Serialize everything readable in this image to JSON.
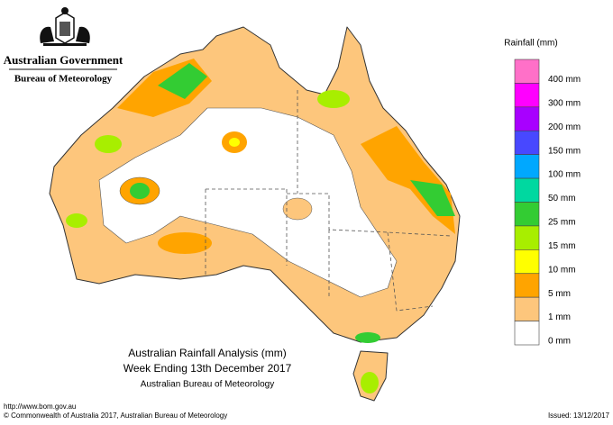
{
  "header": {
    "agency": "Australian Government",
    "bureau": "Bureau of Meteorology"
  },
  "legend": {
    "title": "Rainfall (mm)",
    "boxes": [
      "#ff70c8",
      "#ff00ff",
      "#a800ff",
      "#4848ff",
      "#00a8ff",
      "#00d8a0",
      "#33cc33",
      "#a8ee00",
      "#ffff00",
      "#ffa400",
      "#fdc67c",
      "#ffffff"
    ],
    "labels": [
      "400 mm",
      "300 mm",
      "200 mm",
      "150 mm",
      "100 mm",
      "50 mm",
      "25 mm",
      "15 mm",
      "10 mm",
      "5 mm",
      "1 mm",
      "0 mm"
    ]
  },
  "map_title": {
    "line1": "Australian Rainfall Analysis (mm)",
    "line2": "Week Ending 13th December 2017",
    "line3": "Australian Bureau of Meteorology"
  },
  "footer": {
    "url": "http://www.bom.gov.au",
    "copyright": "© Commonwealth of Australia 2017, Australian Bureau of Meteorology",
    "issued": "Issued: 13/12/2017"
  }
}
